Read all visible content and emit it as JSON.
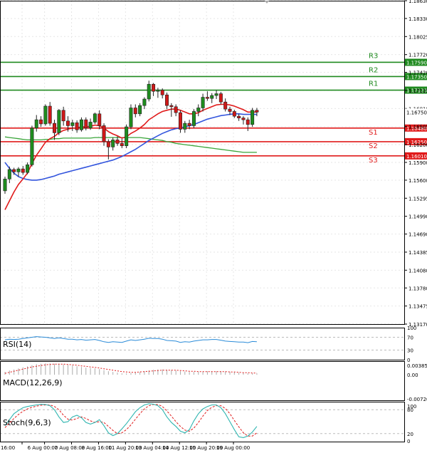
{
  "chart_data": {
    "type": "candlestick",
    "instrument_note": "EUR/USD 4H",
    "price_axis": {
      "ylim": [
        1.1317,
        1.1863
      ],
      "ticks": [
        "1.18630",
        "1.18330",
        "1.18025",
        "1.17720",
        "1.17420",
        "1.17115",
        "1.16810",
        "1.16505",
        "1.16200",
        "1.15900",
        "1.15600",
        "1.15295",
        "1.14990",
        "1.14690",
        "1.14385",
        "1.14080",
        "1.13780",
        "1.13475",
        "1.13170"
      ]
    },
    "levels": [
      {
        "name": "R3",
        "value": 1.1759,
        "label": "1.17590",
        "kind": "resistance"
      },
      {
        "name": "R2",
        "value": 1.1735,
        "label": "1.17350",
        "kind": "resistance"
      },
      {
        "name": "R1",
        "value": 1.1712,
        "label": "1.17120",
        "kind": "resistance"
      },
      {
        "name": "S1",
        "value": 1.1648,
        "label": "1.16480",
        "kind": "support"
      },
      {
        "name": "S2",
        "value": 1.1625,
        "label": "1.16250",
        "kind": "support"
      },
      {
        "name": "S3",
        "value": 1.1601,
        "label": "1.16010",
        "kind": "support"
      }
    ],
    "current_price": {
      "value": 1.1675,
      "label": "1.16750"
    },
    "candles": [
      {
        "o": 1.1542,
        "h": 1.1566,
        "l": 1.1537,
        "c": 1.1562
      },
      {
        "o": 1.1562,
        "h": 1.1583,
        "l": 1.1555,
        "c": 1.1578
      },
      {
        "o": 1.1578,
        "h": 1.1581,
        "l": 1.1569,
        "c": 1.1574
      },
      {
        "o": 1.1574,
        "h": 1.1582,
        "l": 1.1566,
        "c": 1.1579
      },
      {
        "o": 1.1579,
        "h": 1.1584,
        "l": 1.1569,
        "c": 1.1573
      },
      {
        "o": 1.1573,
        "h": 1.159,
        "l": 1.157,
        "c": 1.1586
      },
      {
        "o": 1.1586,
        "h": 1.1652,
        "l": 1.1583,
        "c": 1.1648
      },
      {
        "o": 1.1648,
        "h": 1.167,
        "l": 1.1642,
        "c": 1.1662
      },
      {
        "o": 1.1662,
        "h": 1.1668,
        "l": 1.165,
        "c": 1.1655
      },
      {
        "o": 1.1655,
        "h": 1.1688,
        "l": 1.1652,
        "c": 1.1685
      },
      {
        "o": 1.1685,
        "h": 1.1692,
        "l": 1.1652,
        "c": 1.1656
      },
      {
        "o": 1.1656,
        "h": 1.1662,
        "l": 1.1628,
        "c": 1.164
      },
      {
        "o": 1.164,
        "h": 1.168,
        "l": 1.1636,
        "c": 1.1678
      },
      {
        "o": 1.1678,
        "h": 1.1684,
        "l": 1.1652,
        "c": 1.166
      },
      {
        "o": 1.166,
        "h": 1.1668,
        "l": 1.1642,
        "c": 1.1652
      },
      {
        "o": 1.1652,
        "h": 1.1662,
        "l": 1.1643,
        "c": 1.1657
      },
      {
        "o": 1.1657,
        "h": 1.1661,
        "l": 1.164,
        "c": 1.1645
      },
      {
        "o": 1.1645,
        "h": 1.1666,
        "l": 1.1642,
        "c": 1.1662
      },
      {
        "o": 1.1662,
        "h": 1.1666,
        "l": 1.1644,
        "c": 1.1648
      },
      {
        "o": 1.1648,
        "h": 1.1664,
        "l": 1.1645,
        "c": 1.1658
      },
      {
        "o": 1.1658,
        "h": 1.1674,
        "l": 1.1655,
        "c": 1.1672
      },
      {
        "o": 1.1672,
        "h": 1.1678,
        "l": 1.1646,
        "c": 1.1652
      },
      {
        "o": 1.1652,
        "h": 1.1656,
        "l": 1.1618,
        "c": 1.1625
      },
      {
        "o": 1.1625,
        "h": 1.1629,
        "l": 1.1595,
        "c": 1.1616
      },
      {
        "o": 1.1616,
        "h": 1.1632,
        "l": 1.161,
        "c": 1.1628
      },
      {
        "o": 1.1628,
        "h": 1.1634,
        "l": 1.1618,
        "c": 1.1622
      },
      {
        "o": 1.1622,
        "h": 1.163,
        "l": 1.1614,
        "c": 1.1618
      },
      {
        "o": 1.1618,
        "h": 1.1654,
        "l": 1.1614,
        "c": 1.165
      },
      {
        "o": 1.165,
        "h": 1.1688,
        "l": 1.1646,
        "c": 1.1682
      },
      {
        "o": 1.1682,
        "h": 1.1688,
        "l": 1.1666,
        "c": 1.1672
      },
      {
        "o": 1.1672,
        "h": 1.169,
        "l": 1.1668,
        "c": 1.1686
      },
      {
        "o": 1.1686,
        "h": 1.17,
        "l": 1.168,
        "c": 1.1697
      },
      {
        "o": 1.1697,
        "h": 1.1728,
        "l": 1.1693,
        "c": 1.1722
      },
      {
        "o": 1.1722,
        "h": 1.1724,
        "l": 1.1702,
        "c": 1.171
      },
      {
        "o": 1.171,
        "h": 1.1716,
        "l": 1.1699,
        "c": 1.1712
      },
      {
        "o": 1.1712,
        "h": 1.1715,
        "l": 1.1698,
        "c": 1.1704
      },
      {
        "o": 1.1704,
        "h": 1.1708,
        "l": 1.168,
        "c": 1.1686
      },
      {
        "o": 1.1686,
        "h": 1.169,
        "l": 1.1667,
        "c": 1.1684
      },
      {
        "o": 1.1684,
        "h": 1.1688,
        "l": 1.1668,
        "c": 1.1674
      },
      {
        "o": 1.1674,
        "h": 1.1678,
        "l": 1.164,
        "c": 1.1646
      },
      {
        "o": 1.1646,
        "h": 1.166,
        "l": 1.164,
        "c": 1.1656
      },
      {
        "o": 1.1656,
        "h": 1.1662,
        "l": 1.1646,
        "c": 1.1652
      },
      {
        "o": 1.1652,
        "h": 1.168,
        "l": 1.1648,
        "c": 1.1676
      },
      {
        "o": 1.1676,
        "h": 1.1688,
        "l": 1.1668,
        "c": 1.1682
      },
      {
        "o": 1.1682,
        "h": 1.1706,
        "l": 1.1676,
        "c": 1.17
      },
      {
        "o": 1.17,
        "h": 1.171,
        "l": 1.1694,
        "c": 1.1698
      },
      {
        "o": 1.1698,
        "h": 1.1707,
        "l": 1.169,
        "c": 1.1703
      },
      {
        "o": 1.1703,
        "h": 1.1712,
        "l": 1.1697,
        "c": 1.1706
      },
      {
        "o": 1.1706,
        "h": 1.1709,
        "l": 1.1688,
        "c": 1.1692
      },
      {
        "o": 1.1692,
        "h": 1.1698,
        "l": 1.1676,
        "c": 1.168
      },
      {
        "o": 1.168,
        "h": 1.1684,
        "l": 1.167,
        "c": 1.1676
      },
      {
        "o": 1.1676,
        "h": 1.1679,
        "l": 1.1665,
        "c": 1.1668
      },
      {
        "o": 1.1668,
        "h": 1.1672,
        "l": 1.166,
        "c": 1.1665
      },
      {
        "o": 1.1665,
        "h": 1.1668,
        "l": 1.1654,
        "c": 1.1662
      },
      {
        "o": 1.1662,
        "h": 1.1666,
        "l": 1.1643,
        "c": 1.1654
      },
      {
        "o": 1.1654,
        "h": 1.1682,
        "l": 1.165,
        "c": 1.1678
      },
      {
        "o": 1.1678,
        "h": 1.1682,
        "l": 1.1668,
        "c": 1.1675
      }
    ],
    "ma_fast": [
      1.151,
      1.1525,
      1.154,
      1.1553,
      1.1562,
      1.1572,
      1.1588,
      1.1602,
      1.1613,
      1.1624,
      1.163,
      1.1634,
      1.164,
      1.1644,
      1.1646,
      1.1648,
      1.1648,
      1.165,
      1.165,
      1.1651,
      1.1653,
      1.1652,
      1.1648,
      1.1642,
      1.1638,
      1.1635,
      1.1631,
      1.1633,
      1.1639,
      1.1643,
      1.1648,
      1.1654,
      1.1662,
      1.1667,
      1.1672,
      1.1676,
      1.1678,
      1.168,
      1.168,
      1.1678,
      1.1675,
      1.1672,
      1.1672,
      1.1674,
      1.1678,
      1.1681,
      1.1684,
      1.1687,
      1.1688,
      1.1688,
      1.1687,
      1.1685,
      1.1682,
      1.1679,
      1.1675,
      1.1675,
      1.1675
    ],
    "ma_mid": [
      1.159,
      1.158,
      1.1572,
      1.1566,
      1.1563,
      1.1561,
      1.156,
      1.156,
      1.1561,
      1.1563,
      1.1565,
      1.1567,
      1.157,
      1.1572,
      1.1574,
      1.1576,
      1.1578,
      1.158,
      1.1582,
      1.1584,
      1.1586,
      1.1588,
      1.159,
      1.1592,
      1.1594,
      1.1597,
      1.16,
      1.1604,
      1.1608,
      1.1612,
      1.1617,
      1.1622,
      1.1627,
      1.1631,
      1.1635,
      1.1639,
      1.1642,
      1.1645,
      1.1647,
      1.1648,
      1.165,
      1.1652,
      1.1654,
      1.1657,
      1.166,
      1.1663,
      1.1665,
      1.1667,
      1.1669,
      1.167,
      1.1671,
      1.1672,
      1.1672,
      1.1671,
      1.1671,
      1.1671,
      1.1671
    ],
    "ma_slow": [
      1.1633,
      1.1632,
      1.1631,
      1.163,
      1.1629,
      1.1628,
      1.1628,
      1.1628,
      1.1628,
      1.1629,
      1.1629,
      1.163,
      1.163,
      1.1631,
      1.1631,
      1.1631,
      1.1631,
      1.1631,
      1.1631,
      1.1631,
      1.1632,
      1.1632,
      1.1632,
      1.1632,
      1.1632,
      1.1632,
      1.1632,
      1.1632,
      1.1632,
      1.1632,
      1.1632,
      1.1631,
      1.163,
      1.1629,
      1.1628,
      1.1627,
      1.1625,
      1.1624,
      1.1622,
      1.1621,
      1.162,
      1.1619,
      1.1618,
      1.1617,
      1.1616,
      1.1615,
      1.1614,
      1.1613,
      1.1612,
      1.1611,
      1.161,
      1.1609,
      1.1608,
      1.1607,
      1.1607,
      1.1607,
      1.1607
    ],
    "time_axis": [
      {
        "i": 0,
        "label": "16:00"
      },
      {
        "i": 5,
        "label": "6 Aug 00:00"
      },
      {
        "i": 11,
        "label": "7 Aug 08:00"
      },
      {
        "i": 17,
        "label": "8 Aug 16:00"
      },
      {
        "i": 23,
        "label": "11 Aug 20:00"
      },
      {
        "i": 29,
        "label": "13 Aug 04:00"
      },
      {
        "i": 35,
        "label": "14 Aug 12:00"
      },
      {
        "i": 41,
        "label": "15 Aug 20:00"
      },
      {
        "i": 47,
        "label": "19 Aug 00:00"
      }
    ],
    "rsi": {
      "label": "RSI(14)",
      "ylim": [
        0,
        100
      ],
      "ticks": [
        "100",
        "70",
        "30",
        "0"
      ],
      "values": [
        62,
        64,
        63,
        64,
        66,
        68,
        70,
        72,
        71,
        70,
        68,
        66,
        68,
        66,
        64,
        64,
        62,
        63,
        61,
        62,
        63,
        60,
        56,
        54,
        56,
        55,
        54,
        58,
        62,
        60,
        62,
        64,
        67,
        66,
        66,
        64,
        60,
        59,
        58,
        54,
        56,
        55,
        58,
        60,
        62,
        62,
        63,
        63,
        61,
        58,
        57,
        56,
        55,
        55,
        53,
        57,
        56
      ]
    },
    "macd": {
      "label": "MACD(12,26,9)",
      "ticks": [
        "0.003853",
        "0.00",
        "-0.007206"
      ],
      "ylim": [
        -0.007206,
        0.003853
      ],
      "histogram": [
        0.0008,
        0.0012,
        0.0015,
        0.0018,
        0.0021,
        0.0024,
        0.0027,
        0.003,
        0.0031,
        0.0032,
        0.0032,
        0.0031,
        0.003,
        0.0029,
        0.0028,
        0.0026,
        0.0024,
        0.0022,
        0.002,
        0.0019,
        0.0018,
        0.0016,
        0.0013,
        0.001,
        0.0008,
        0.0006,
        0.0004,
        0.0004,
        0.0005,
        0.0006,
        0.0008,
        0.001,
        0.0012,
        0.0014,
        0.0015,
        0.0015,
        0.0014,
        0.0013,
        0.0012,
        0.001,
        0.0009,
        0.0008,
        0.0008,
        0.0008,
        0.0009,
        0.001,
        0.001,
        0.001,
        0.001,
        0.0009,
        0.0008,
        0.0007,
        0.0006,
        0.0005,
        0.0004,
        0.0004,
        0.0004
      ],
      "signal": [
        0.0004,
        0.0007,
        0.001,
        0.0013,
        0.0016,
        0.0019,
        0.0022,
        0.0024,
        0.0026,
        0.0028,
        0.0029,
        0.003,
        0.003,
        0.003,
        0.0029,
        0.0028,
        0.0027,
        0.0025,
        0.0024,
        0.0022,
        0.0021,
        0.0019,
        0.0017,
        0.0015,
        0.0013,
        0.0011,
        0.0009,
        0.0008,
        0.0007,
        0.0007,
        0.0008,
        0.0009,
        0.001,
        0.0011,
        0.0012,
        0.0013,
        0.0013,
        0.0013,
        0.0013,
        0.0012,
        0.0011,
        0.001,
        0.001,
        0.0009,
        0.0009,
        0.0009,
        0.0009,
        0.0009,
        0.0009,
        0.0009,
        0.0008,
        0.0008,
        0.0007,
        0.0006,
        0.0006,
        0.0005,
        0.0005
      ]
    },
    "stoch": {
      "label": "Stoch(9,6,3)",
      "ylim": [
        0,
        100
      ],
      "ticks": [
        "100",
        "80",
        "20",
        "0"
      ],
      "k": [
        40,
        55,
        70,
        78,
        85,
        88,
        90,
        92,
        94,
        93,
        90,
        80,
        62,
        48,
        50,
        62,
        66,
        60,
        48,
        44,
        48,
        55,
        40,
        22,
        15,
        20,
        32,
        45,
        60,
        75,
        85,
        92,
        95,
        94,
        90,
        80,
        62,
        48,
        38,
        26,
        22,
        30,
        52,
        70,
        82,
        88,
        92,
        92,
        85,
        70,
        50,
        30,
        12,
        10,
        14,
        24,
        38
      ],
      "d": [
        35,
        46,
        58,
        68,
        76,
        82,
        86,
        89,
        91,
        92,
        92,
        88,
        80,
        66,
        56,
        54,
        58,
        62,
        58,
        52,
        48,
        50,
        48,
        38,
        28,
        20,
        22,
        30,
        42,
        56,
        70,
        82,
        90,
        93,
        93,
        88,
        77,
        64,
        50,
        38,
        29,
        26,
        34,
        48,
        64,
        78,
        86,
        90,
        90,
        83,
        70,
        53,
        37,
        22,
        14,
        14,
        22
      ]
    }
  }
}
